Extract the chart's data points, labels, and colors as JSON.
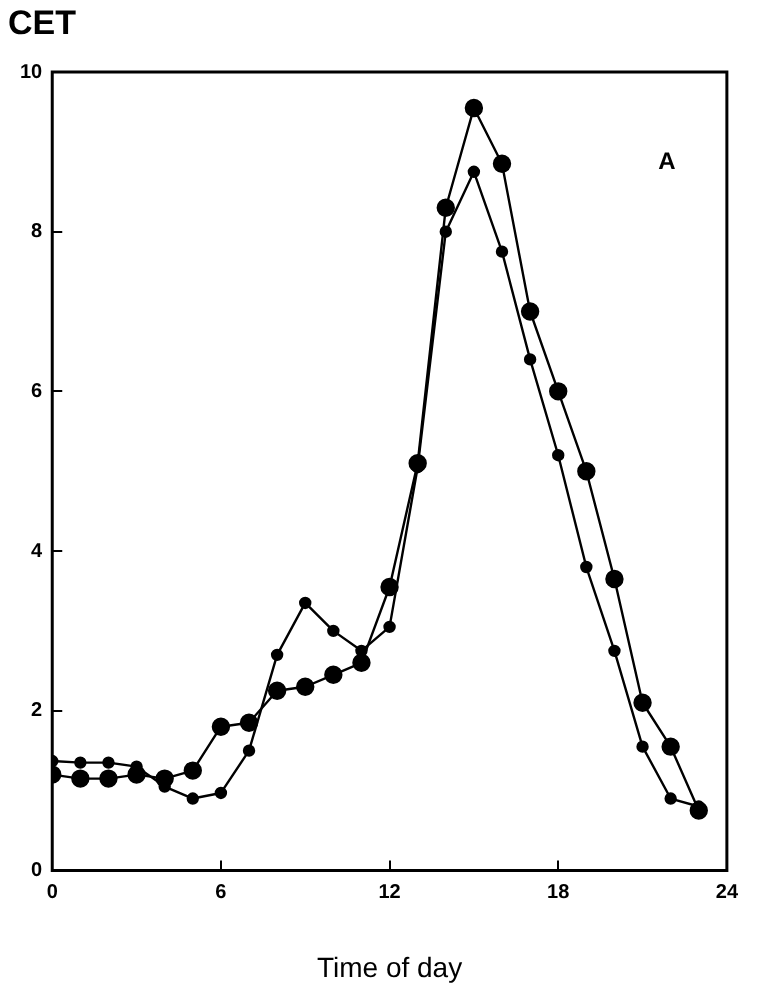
{
  "chart_data": {
    "type": "line",
    "title": "CET",
    "xlabel": "Time of day",
    "annotations": [
      "A"
    ],
    "x": [
      0,
      1,
      2,
      3,
      4,
      5,
      6,
      7,
      8,
      9,
      10,
      11,
      12,
      13,
      14,
      15,
      16,
      17,
      18,
      19,
      20,
      21,
      22,
      23
    ],
    "series": [
      {
        "color": "#000000",
        "values": [
          1.37,
          1.35,
          1.35,
          1.3,
          1.05,
          0.9,
          0.97,
          1.5,
          2.7,
          3.35,
          3.0,
          2.75,
          3.05,
          5.05,
          8.0,
          8.75,
          7.75,
          6.4,
          5.2,
          3.8,
          2.75,
          1.55,
          0.9,
          0.8
        ]
      },
      {
        "color": "#000000",
        "values": [
          1.2,
          1.15,
          1.15,
          1.2,
          1.15,
          1.25,
          1.8,
          1.85,
          2.25,
          2.3,
          2.45,
          2.6,
          3.55,
          5.1,
          8.3,
          9.55,
          8.85,
          7.0,
          6.0,
          5.0,
          3.65,
          2.1,
          1.55,
          0.75
        ]
      }
    ],
    "xlim": [
      0,
      24
    ],
    "xticks": [
      0,
      6,
      12,
      18,
      24
    ],
    "ylim": [
      0,
      10
    ],
    "yticks": [
      0,
      2,
      4,
      6,
      8,
      10
    ],
    "grid": false,
    "legend": false,
    "marker": "circle",
    "line_style": "solid"
  }
}
